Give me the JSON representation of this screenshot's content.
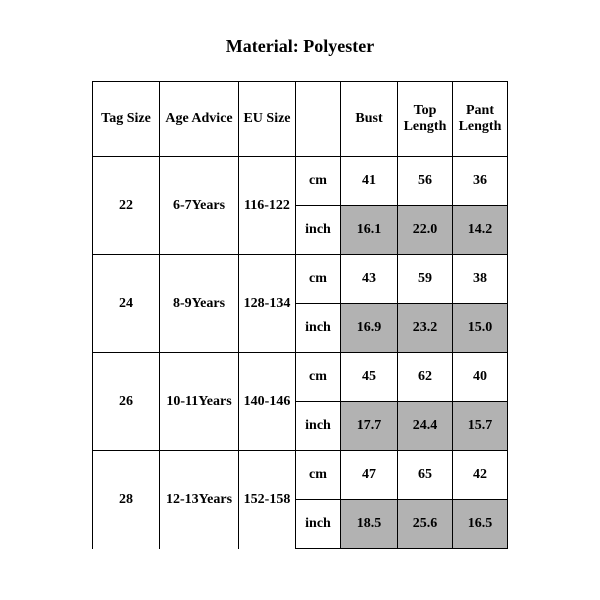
{
  "title": "Material: Polyester",
  "columns": {
    "tag": "Tag Size",
    "age": "Age Advice",
    "eu": "EU Size",
    "unit": "",
    "bust": "Bust",
    "top": "Top Length",
    "pant": "Pant Length"
  },
  "units": {
    "cm": "cm",
    "inch": "inch"
  },
  "rows": [
    {
      "tag": "22",
      "age": "6-7Years",
      "eu": "116-122",
      "cm": {
        "bust": "41",
        "top": "56",
        "pant": "36"
      },
      "inch": {
        "bust": "16.1",
        "top": "22.0",
        "pant": "14.2"
      }
    },
    {
      "tag": "24",
      "age": "8-9Years",
      "eu": "128-134",
      "cm": {
        "bust": "43",
        "top": "59",
        "pant": "38"
      },
      "inch": {
        "bust": "16.9",
        "top": "23.2",
        "pant": "15.0"
      }
    },
    {
      "tag": "26",
      "age": "10-11Years",
      "eu": "140-146",
      "cm": {
        "bust": "45",
        "top": "62",
        "pant": "40"
      },
      "inch": {
        "bust": "17.7",
        "top": "24.4",
        "pant": "15.7"
      }
    },
    {
      "tag": "28",
      "age": "12-13Years",
      "eu": "152-158",
      "cm": {
        "bust": "47",
        "top": "65",
        "pant": "42"
      },
      "inch": {
        "bust": "18.5",
        "top": "25.6",
        "pant": "16.5"
      }
    }
  ],
  "style": {
    "shade_bg": "#b2b2b2",
    "border_color": "#000000",
    "font_family": "Times New Roman",
    "title_fontsize": 18,
    "cell_fontsize": 14
  }
}
